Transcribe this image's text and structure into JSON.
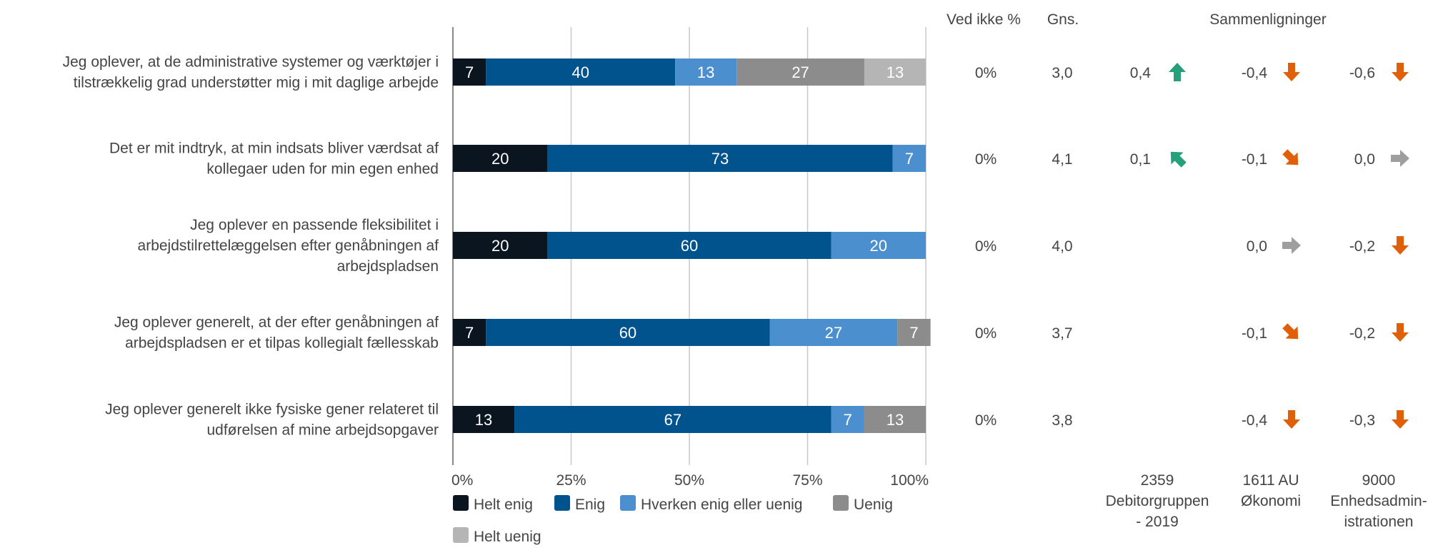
{
  "colors": {
    "helt_enig": "#0a1520",
    "enig": "#00538c",
    "hverken": "#4c8fcf",
    "uenig": "#8c8c8c",
    "helt_uenig": "#b5b5b5",
    "arrow_up": "#24a07a",
    "arrow_down": "#e0600a",
    "arrow_flat": "#9e9e9e"
  },
  "headers": {
    "ved_ikke": "Ved ikke %",
    "gns": "Gns.",
    "sammenligninger": "Sammenligninger"
  },
  "comparison_groups": [
    [
      "2359",
      "Debitorgruppen",
      "- 2019"
    ],
    [
      "1611 AU",
      "Økonomi"
    ],
    [
      "9000",
      "Enhedsadmin-",
      "istrationen"
    ]
  ],
  "chart_data": {
    "type": "bar",
    "orientation": "horizontal-stacked-percent",
    "xlim": [
      0,
      100
    ],
    "x_ticks": [
      "0%",
      "25%",
      "50%",
      "75%",
      "100%"
    ],
    "legend": {
      "placement": "bottom-left",
      "entries": [
        "Helt enig",
        "Enig",
        "Hverken enig eller uenig",
        "Uenig",
        "Helt uenig"
      ]
    },
    "categories": [
      [
        "Jeg oplever, at de administrative systemer og værktøjer i",
        "tilstrækkelig grad understøtter mig i mit daglige arbejde"
      ],
      [
        "Det er mit indtryk, at min indsats bliver værdsat af",
        "kollegaer uden for min egen enhed"
      ],
      [
        "Jeg oplever en passende fleksibilitet i",
        "arbejdstilrettelæggelsen efter genåbningen af",
        "arbejdspladsen"
      ],
      [
        "Jeg oplever generelt, at der efter genåbningen af",
        "arbejdspladsen er et tilpas kollegialt fællesskab"
      ],
      [
        "Jeg oplever generelt ikke fysiske gener relateret til",
        "udførelsen af mine arbejdsopgaver"
      ]
    ],
    "series": [
      {
        "name": "Helt enig",
        "values": [
          7,
          20,
          20,
          7,
          13
        ]
      },
      {
        "name": "Enig",
        "values": [
          40,
          73,
          60,
          60,
          67
        ]
      },
      {
        "name": "Hverken enig eller uenig",
        "values": [
          13,
          7,
          20,
          27,
          7
        ]
      },
      {
        "name": "Uenig",
        "values": [
          27,
          0,
          0,
          7,
          13
        ]
      },
      {
        "name": "Helt uenig",
        "values": [
          13,
          0,
          0,
          0,
          0
        ]
      }
    ],
    "ved_ikke": [
      "0%",
      "0%",
      "0%",
      "0%",
      "0%"
    ],
    "gns": [
      "3,0",
      "4,1",
      "4,0",
      "3,7",
      "3,8"
    ],
    "comparisons": [
      [
        {
          "value": "0,4",
          "dir": "up"
        },
        {
          "value": "-0,4",
          "dir": "down"
        },
        {
          "value": "-0,6",
          "dir": "down"
        }
      ],
      [
        {
          "value": "0,1",
          "dir": "up-left"
        },
        {
          "value": "-0,1",
          "dir": "down-right"
        },
        {
          "value": "0,0",
          "dir": "right"
        }
      ],
      [
        null,
        {
          "value": "0,0",
          "dir": "right"
        },
        {
          "value": "-0,2",
          "dir": "down"
        }
      ],
      [
        null,
        {
          "value": "-0,1",
          "dir": "down-right"
        },
        {
          "value": "-0,2",
          "dir": "down"
        }
      ],
      [
        null,
        {
          "value": "-0,4",
          "dir": "down"
        },
        {
          "value": "-0,3",
          "dir": "down"
        }
      ]
    ]
  }
}
